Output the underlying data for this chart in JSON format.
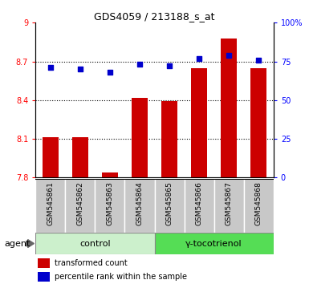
{
  "title": "GDS4059 / 213188_s_at",
  "categories": [
    "GSM545861",
    "GSM545862",
    "GSM545863",
    "GSM545864",
    "GSM545865",
    "GSM545866",
    "GSM545867",
    "GSM545868"
  ],
  "bar_values": [
    8.11,
    8.11,
    7.84,
    8.42,
    8.39,
    8.65,
    8.88,
    8.65
  ],
  "dot_values": [
    71,
    70,
    68,
    73,
    72,
    77,
    79,
    76
  ],
  "ylim_left": [
    7.8,
    9.0
  ],
  "ylim_right": [
    0,
    100
  ],
  "yticks_left": [
    7.8,
    8.1,
    8.4,
    8.7,
    9.0
  ],
  "ytick_labels_left": [
    "7.8",
    "8.1",
    "8.4",
    "8.7",
    "9"
  ],
  "yticks_right": [
    0,
    25,
    50,
    75,
    100
  ],
  "ytick_labels_right": [
    "0",
    "25",
    "50",
    "75",
    "100%"
  ],
  "bar_color": "#cc0000",
  "dot_color": "#0000cc",
  "grid_color": "#000000",
  "tick_bg_color": "#c8c8c8",
  "control_bg": "#ccf0cc",
  "treatment_bg": "#55dd55",
  "control_label": "control",
  "treatment_label": "γ-tocotrienol",
  "agent_label": "agent",
  "legend_bar": "transformed count",
  "legend_dot": "percentile rank within the sample",
  "control_count": 4,
  "treatment_count": 4,
  "hline_values": [
    8.1,
    8.4,
    8.7
  ],
  "bar_width": 0.55
}
